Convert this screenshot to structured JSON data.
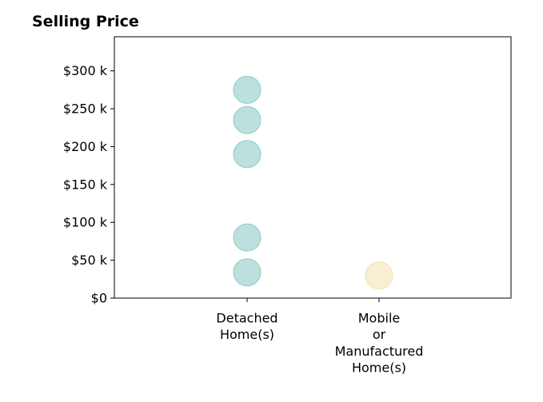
{
  "chart_data": {
    "type": "scatter",
    "title": "Selling Price",
    "xlabel": "",
    "ylabel": "",
    "categories": [
      [
        "Detached",
        "Home(s)"
      ],
      [
        "Mobile",
        "or",
        "Manufactured",
        "Home(s)"
      ]
    ],
    "y_ticks": [
      "$0",
      "$50 k",
      "$100 k",
      "$150 k",
      "$200 k",
      "$250 k",
      "$300 k"
    ],
    "y_tick_values": [
      0,
      50000,
      100000,
      150000,
      200000,
      250000,
      300000
    ],
    "ylim": [
      0,
      345000
    ],
    "grid": false,
    "series": [
      {
        "category_index": 0,
        "color": "#8ecbc6",
        "values": [
          275000,
          235000,
          190000,
          80000,
          34000
        ]
      },
      {
        "category_index": 1,
        "color": "#f5e2b7",
        "values": [
          30000
        ]
      }
    ]
  }
}
